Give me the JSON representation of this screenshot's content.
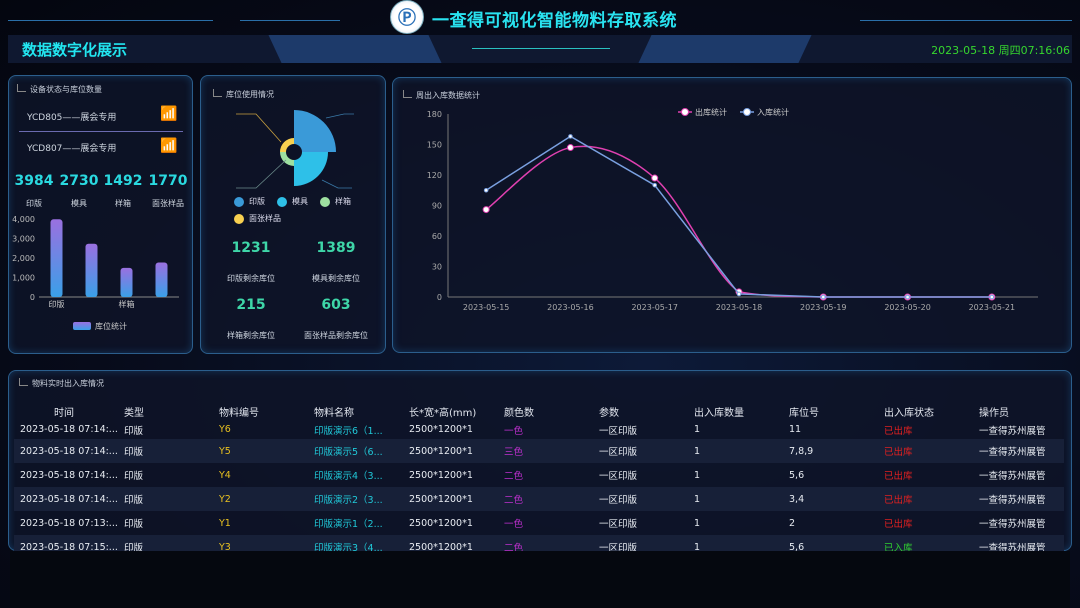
{
  "header": {
    "title": "一查得可视化智能物料存取系统",
    "logo_text": "一查得",
    "subtitle": "数据数字化展示",
    "datetime": "2023-05-18 周四07:16:06"
  },
  "colors": {
    "accent": "#29e3f0",
    "clock": "#36d62e",
    "out": "#e040b0",
    "in": "#7aa0e0",
    "status_out": "#e02020",
    "status_in": "#30d030",
    "code": "#e8c020",
    "name": "#20c8d8",
    "color_count": "#c030d0"
  },
  "device_panel": {
    "title": "设备状态与库位数量",
    "devices": [
      {
        "name": "YCD805——展会专用",
        "icon": "wifi-icon",
        "status_color": "#ffffff"
      },
      {
        "name": "YCD807——展会专用",
        "icon": "wifi-icon",
        "status_color": "#30d030"
      }
    ],
    "stats": [
      {
        "value": "3984",
        "label": "印版"
      },
      {
        "value": "2730",
        "label": "模具"
      },
      {
        "value": "1492",
        "label": "样箱"
      },
      {
        "value": "1770",
        "label": "面张样品"
      }
    ]
  },
  "usage_panel": {
    "title": "库位使用情况",
    "legend": [
      {
        "label": "印版",
        "color": "#3a9ad8"
      },
      {
        "label": "模具",
        "color": "#2ec0e8"
      },
      {
        "label": "样箱",
        "color": "#9ee0a0"
      },
      {
        "label": "面张样品",
        "color": "#f8d050"
      }
    ],
    "remaining": [
      {
        "value": "1231",
        "label": "印版剩余库位"
      },
      {
        "value": "1389",
        "label": "模具剩余库位"
      },
      {
        "value": "215",
        "label": "样箱剩余库位"
      },
      {
        "value": "603",
        "label": "面张样品剩余库位"
      }
    ]
  },
  "trend_panel": {
    "title": "周出入库数据统计"
  },
  "chart_data": [
    {
      "type": "bar",
      "categories": [
        "印版",
        "模具",
        "样箱",
        "面张样品"
      ],
      "shown_tick_labels": [
        "印版",
        "样箱"
      ],
      "values": [
        3984,
        2730,
        1492,
        1770
      ],
      "ylim": [
        0,
        4000
      ],
      "yticks": [
        "0",
        "1,000",
        "2,000",
        "3,000",
        "4,000"
      ],
      "series_name": "库位统计",
      "legend": "bottom",
      "grid": false
    },
    {
      "type": "pie",
      "variant": "rose",
      "categories": [
        "印版",
        "模具",
        "样箱",
        "面张样品"
      ],
      "values": [
        3984,
        2730,
        1492,
        1770
      ],
      "legend": "bottom"
    },
    {
      "type": "line",
      "categories": [
        "2023-05-15",
        "2023-05-16",
        "2023-05-17",
        "2023-05-18",
        "2023-05-19",
        "2023-05-20",
        "2023-05-21"
      ],
      "series": [
        {
          "name": "出库统计",
          "values": [
            86,
            147,
            117,
            5,
            0,
            0,
            0
          ],
          "smooth": true,
          "color": "#e040b0"
        },
        {
          "name": "入库统计",
          "values": [
            105,
            158,
            110,
            3,
            0,
            0,
            0
          ],
          "smooth": false,
          "color": "#7aa0e0"
        }
      ],
      "ylim": [
        0,
        180
      ],
      "yticks": [
        "0",
        "30",
        "60",
        "90",
        "120",
        "150",
        "180"
      ],
      "legend": "top-center",
      "grid": false
    }
  ],
  "table": {
    "title": "物料实时出入库情况",
    "columns": [
      "时间",
      "类型",
      "物料编号",
      "物料名称",
      "长*宽*高(mm)",
      "颜色数",
      "参数",
      "出入库数量",
      "库位号",
      "出入库状态",
      "操作员"
    ],
    "rows": [
      [
        "2023-05-18 07:14:...",
        "印版",
        "Y6",
        "印版演示6（1...",
        "2500*1200*1",
        "一色",
        "一区印版",
        "1",
        "11",
        "已出库",
        "一查得苏州展管"
      ],
      [
        "2023-05-18 07:14:...",
        "印版",
        "Y5",
        "印版演示5（6...",
        "2500*1200*1",
        "三色",
        "一区印版",
        "1",
        "7,8,9",
        "已出库",
        "一查得苏州展管"
      ],
      [
        "2023-05-18 07:14:...",
        "印版",
        "Y4",
        "印版演示4（3...",
        "2500*1200*1",
        "二色",
        "一区印版",
        "1",
        "5,6",
        "已出库",
        "一查得苏州展管"
      ],
      [
        "2023-05-18 07:14:...",
        "印版",
        "Y2",
        "印版演示2（3...",
        "2500*1200*1",
        "二色",
        "一区印版",
        "1",
        "3,4",
        "已出库",
        "一查得苏州展管"
      ],
      [
        "2023-05-18 07:13:...",
        "印版",
        "Y1",
        "印版演示1（2...",
        "2500*1200*1",
        "一色",
        "一区印版",
        "1",
        "2",
        "已出库",
        "一查得苏州展管"
      ],
      [
        "2023-05-18 07:15:...",
        "印版",
        "Y3",
        "印版演示3（4...",
        "2500*1200*1",
        "二色",
        "一区印版",
        "1",
        "5,6",
        "已入库",
        "一查得苏州展管"
      ]
    ]
  }
}
